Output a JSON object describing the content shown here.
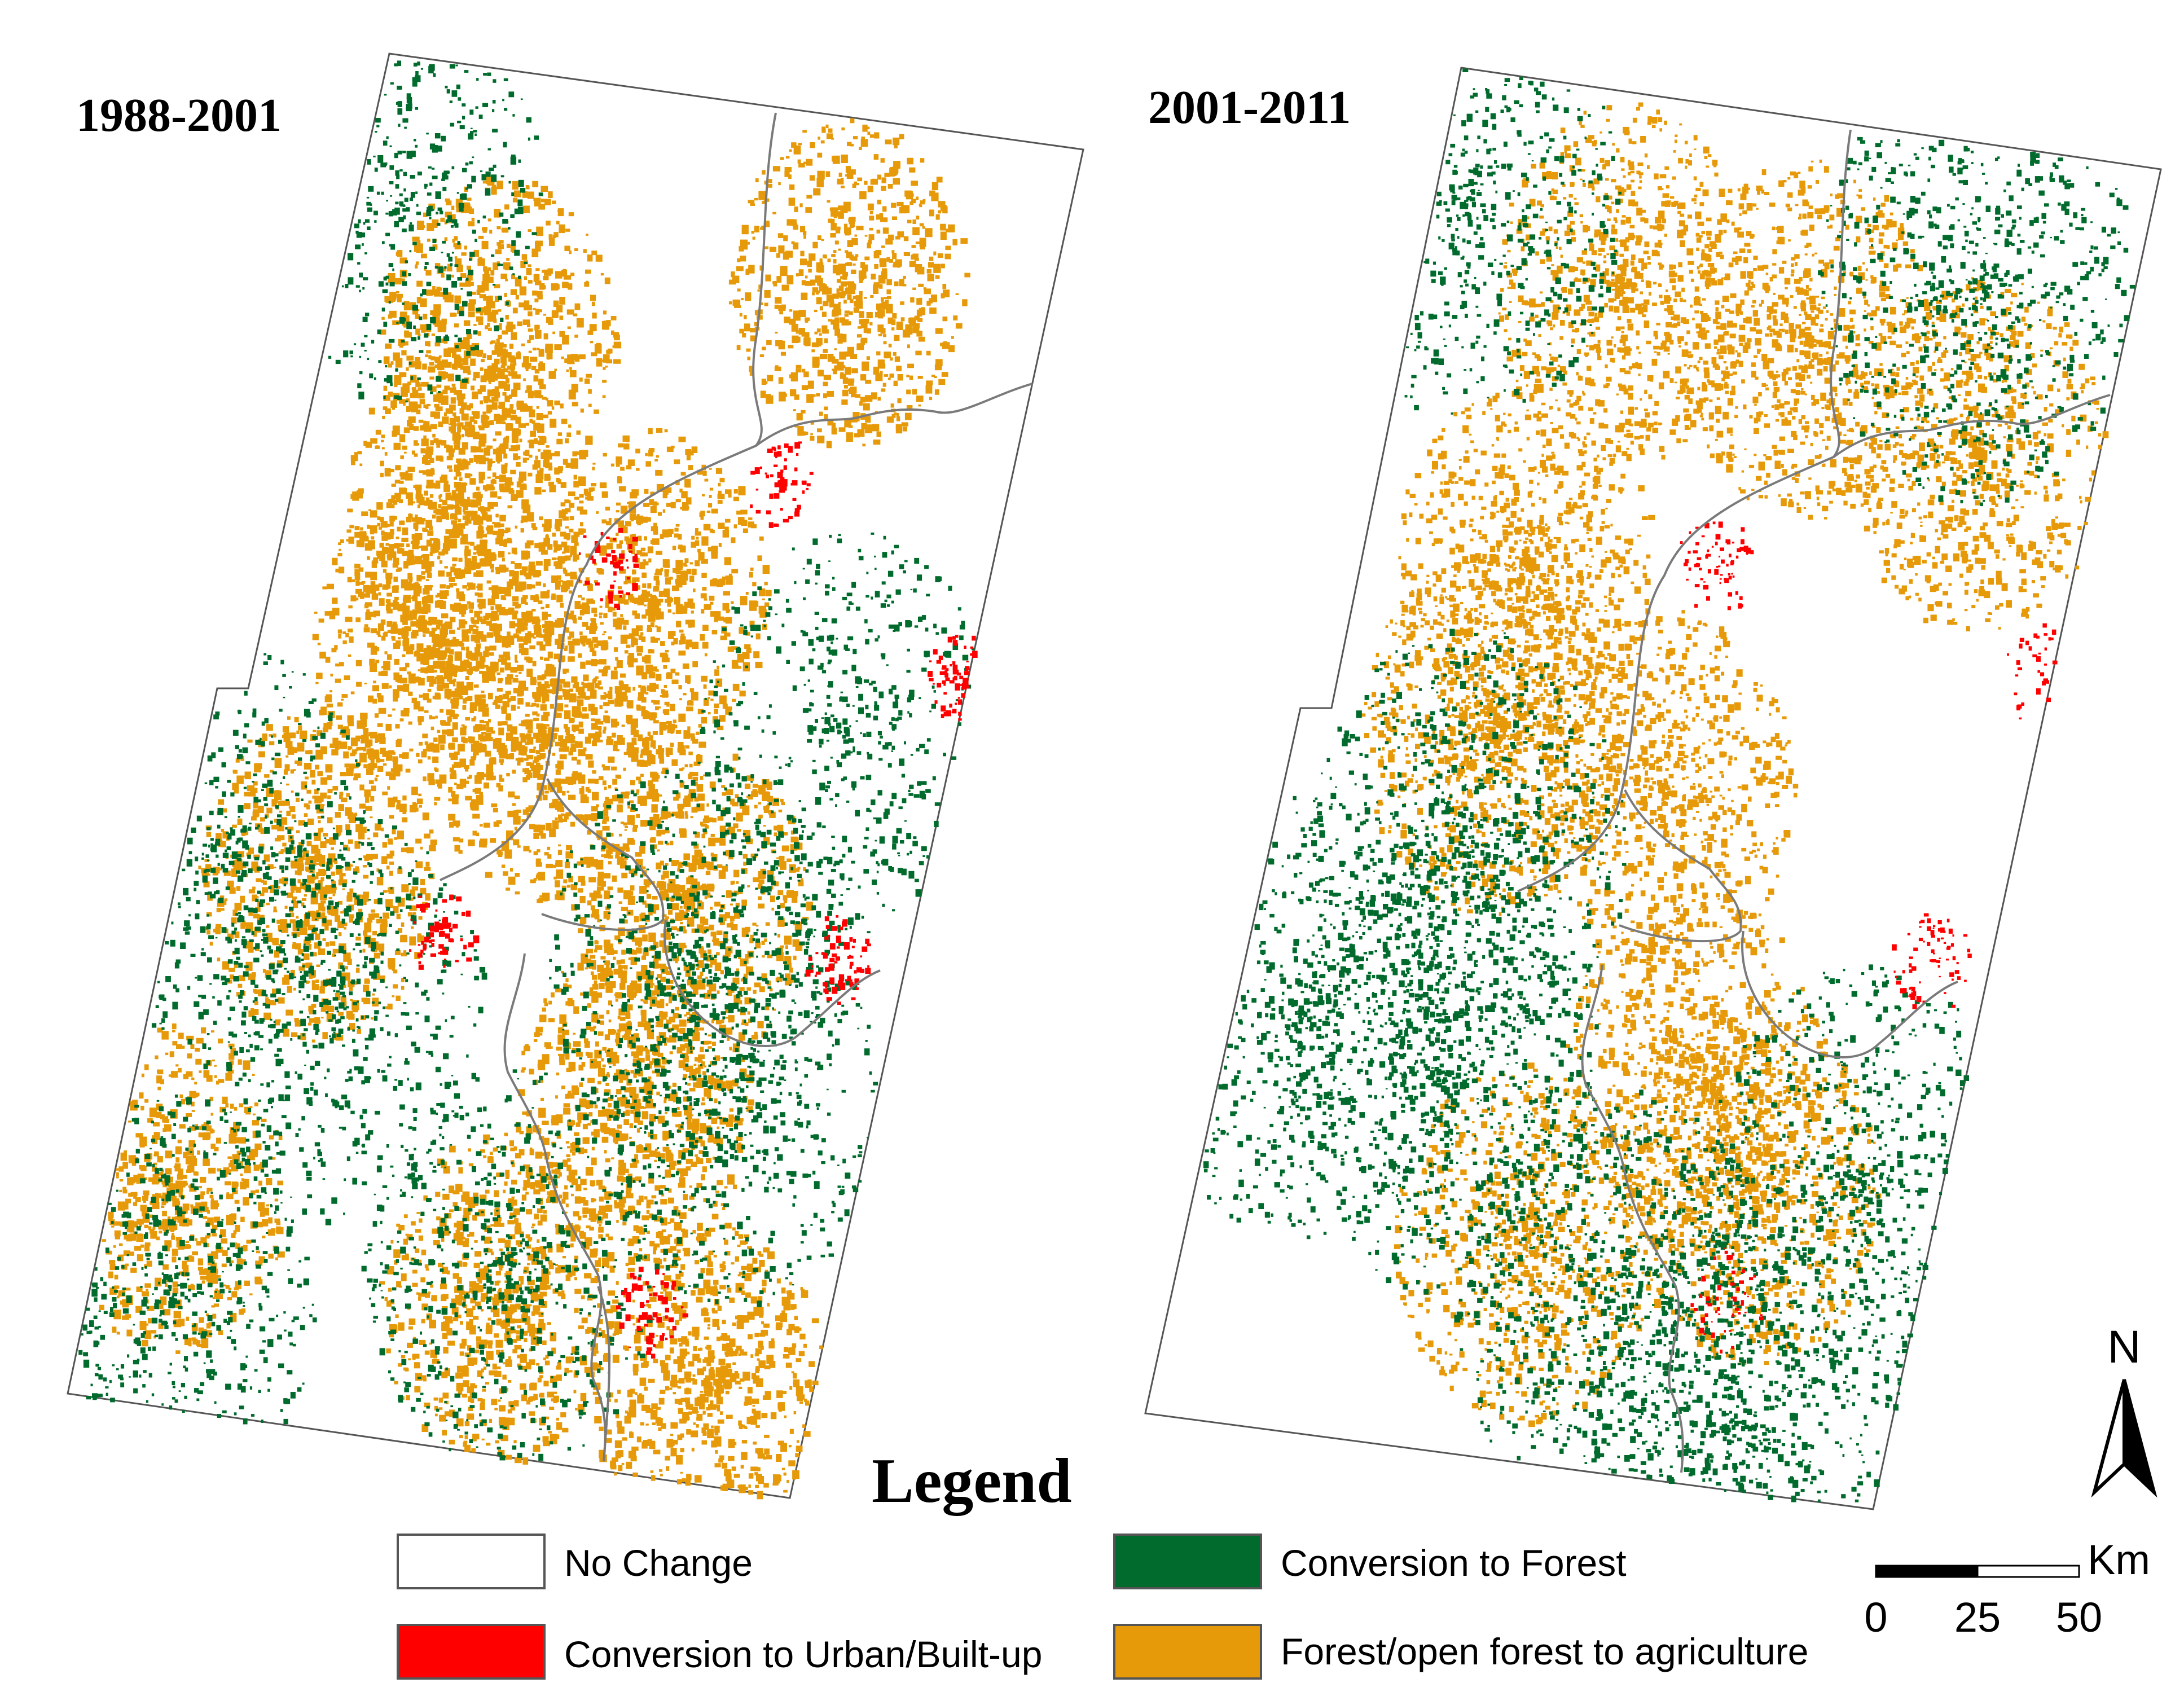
{
  "maps": [
    {
      "period": "1988-2001"
    },
    {
      "period": "2001-2011"
    }
  ],
  "legend": {
    "title": "Legend",
    "items": [
      {
        "label": "No Change",
        "color": "#ffffff"
      },
      {
        "label": "Conversion to Forest",
        "color": "#006b2c"
      },
      {
        "label": "Conversion to Urban/Built-up",
        "color": "#ff0000"
      },
      {
        "label": "Forest/open forest to agriculture",
        "color": "#e69a0a"
      }
    ]
  },
  "north_arrow": {
    "label": "N"
  },
  "scale_bar": {
    "unit": "Km",
    "ticks": [
      "0",
      "25",
      "50"
    ]
  },
  "colors": {
    "boundary": "#7a7a7a",
    "outline": "#555555",
    "no_change": "#ffffff",
    "forest": "#006b2c",
    "urban": "#ff0000",
    "agriculture": "#e69a0a"
  }
}
